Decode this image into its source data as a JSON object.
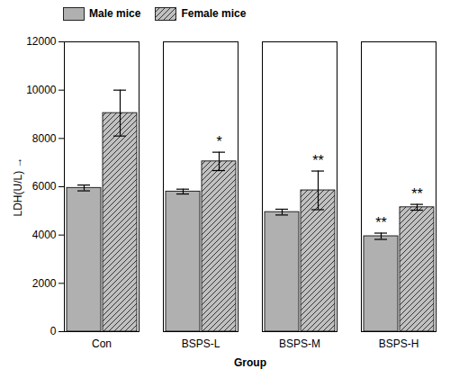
{
  "chart_data": {
    "type": "bar",
    "xlabel": "Group",
    "ylabel": "LDH(U/L)",
    "categories": [
      "Con",
      "BSPS-L",
      "BSPS-M",
      "BSPS-H"
    ],
    "series": [
      {
        "name": "Male mice",
        "color": "#b0b0b0",
        "values": [
          5950,
          5800,
          4950,
          3950
        ],
        "errors": [
          120,
          100,
          120,
          130
        ]
      },
      {
        "name": "Female mice",
        "color": "#c0c0c0",
        "values": [
          9050,
          7050,
          5850,
          5150
        ],
        "errors": [
          950,
          380,
          800,
          120
        ]
      }
    ],
    "ylim": [
      0,
      12000
    ],
    "yticks": [
      0,
      2000,
      4000,
      6000,
      8000,
      10000,
      12000
    ],
    "grid": false,
    "legend": "upper left",
    "annotations": [
      {
        "text": "*",
        "category": "BSPS-L",
        "series": "Female mice"
      },
      {
        "text": "**",
        "category": "BSPS-M",
        "series": "Female mice"
      },
      {
        "text": "**",
        "category": "BSPS-H",
        "series": "Male mice"
      },
      {
        "text": "**",
        "category": "BSPS-H",
        "series": "Female mice"
      }
    ]
  }
}
